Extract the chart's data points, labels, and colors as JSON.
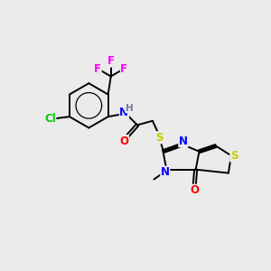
{
  "bg_color": "#ebebeb",
  "figsize": [
    3.0,
    3.0
  ],
  "dpi": 100,
  "colors": {
    "bond": "#000000",
    "N": "#0000ff",
    "O": "#ff0000",
    "S": "#cccc00",
    "Cl": "#00cc00",
    "F": "#ff00ff",
    "H": "#708090",
    "C": "#000000"
  },
  "lw": 1.4,
  "lw2": 1.4,
  "fs": 8.5,
  "fs_small": 7.5
}
